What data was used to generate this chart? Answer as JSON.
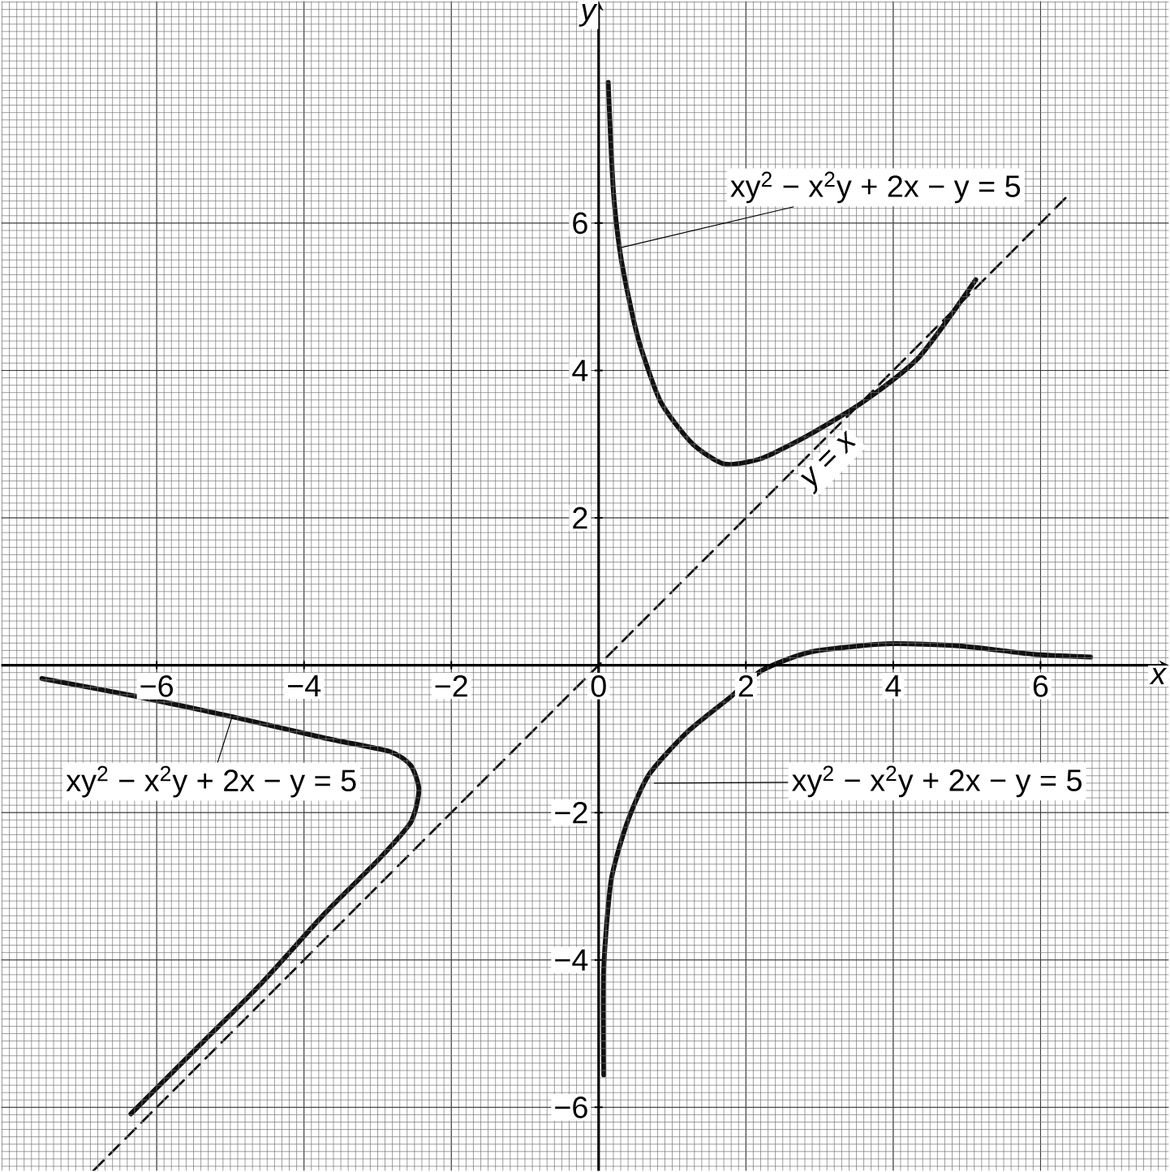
{
  "chart_data": {
    "type": "line",
    "xlabel": "x",
    "ylabel": "y",
    "xlim": [
      -8.11,
      7.74
    ],
    "ylim": [
      -6.86,
      9.01
    ],
    "xticks": [
      {
        "value": -6,
        "label": "−6"
      },
      {
        "value": -4,
        "label": "−4"
      },
      {
        "value": -2,
        "label": "−2"
      },
      0,
      2,
      4,
      6
    ],
    "yticks": [
      {
        "value": -6,
        "label": "−6"
      },
      {
        "value": -4,
        "label": "−4"
      },
      {
        "value": -2,
        "label": "−2"
      },
      2,
      4,
      6
    ],
    "grid": true,
    "series": [
      {
        "color": "#111111",
        "line_style": "solid",
        "x": [
          -7.56,
          -6.29,
          -4.97,
          -3.71,
          -2.84,
          -2.55,
          -2.44,
          -2.55,
          -2.99,
          -3.71,
          -4.59,
          -5.47,
          -6.35
        ],
        "values": [
          -0.18,
          -0.42,
          -0.7,
          -0.99,
          -1.17,
          -1.36,
          -1.69,
          -2.13,
          -2.64,
          -3.36,
          -4.33,
          -5.21,
          -6.09
        ]
      },
      {
        "color": "#111111",
        "line_style": "solid",
        "x": [
          0.13,
          0.2,
          0.31,
          0.53,
          0.84,
          1.27,
          1.71,
          2.22,
          2.88,
          3.6,
          4.35,
          5.12
        ],
        "values": [
          7.91,
          6.44,
          5.49,
          4.46,
          3.58,
          3.01,
          2.73,
          2.81,
          3.14,
          3.58,
          4.18,
          5.23
        ]
      },
      {
        "color": "#111111",
        "line_style": "solid",
        "x": [
          0.07,
          0.07,
          0.17,
          0.39,
          0.68,
          1.19,
          1.78,
          2.22,
          2.88,
          3.91,
          4.92,
          5.89,
          6.68
        ],
        "values": [
          -5.56,
          -4.11,
          -2.92,
          -2.13,
          -1.49,
          -0.92,
          -0.44,
          -0.07,
          0.18,
          0.29,
          0.26,
          0.15,
          0.11
        ]
      },
      {
        "name": "y = x",
        "color": "#111111",
        "line_style": "dashed",
        "x": [
          -6.86,
          6.4
        ],
        "values": [
          -6.86,
          6.4
        ]
      }
    ],
    "annotations": [
      {
        "text": "xy$^{2}$ − x$^{2}$y + 2x − y = 5",
        "x": -4.97,
        "y": -0.68
      },
      {
        "text": "xy$^{2}$ − x$^{2}$y + 2x − y = 5",
        "x": 0.31,
        "y": 5.67
      },
      {
        "text": "xy$^{2}$ − x$^{2}$y + 2x − y = 5",
        "x": 0.75,
        "y": -1.6
      }
    ]
  }
}
